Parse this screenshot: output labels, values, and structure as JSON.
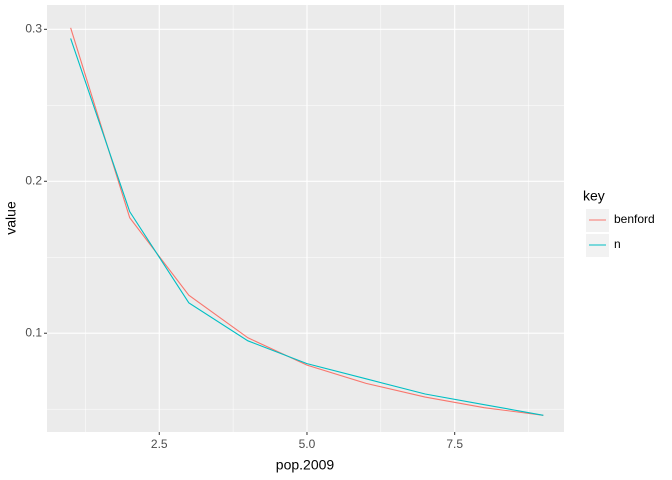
{
  "chart_data": {
    "type": "line",
    "x_label": "pop.2009",
    "y_label": "value",
    "x": [
      1,
      2,
      3,
      4,
      5,
      6,
      7,
      8,
      9
    ],
    "series": [
      {
        "name": "benford",
        "color": "#F8766D",
        "values": [
          0.301,
          0.176,
          0.125,
          0.097,
          0.079,
          0.067,
          0.058,
          0.051,
          0.046
        ]
      },
      {
        "name": "n",
        "color": "#00BFC4",
        "values": [
          0.294,
          0.18,
          0.12,
          0.095,
          0.08,
          0.07,
          0.06,
          0.053,
          0.046
        ]
      }
    ],
    "legend_title": "key",
    "xlim": [
      0.6,
      9.35
    ],
    "xticks": [
      2.5,
      {
        "value": 5,
        "label": "5.0"
      },
      7.5
    ],
    "ylim": [
      0.035,
      0.316
    ],
    "yticks": [
      0.1,
      0.2,
      0.3
    ],
    "grid": true,
    "legend_position": "right"
  }
}
